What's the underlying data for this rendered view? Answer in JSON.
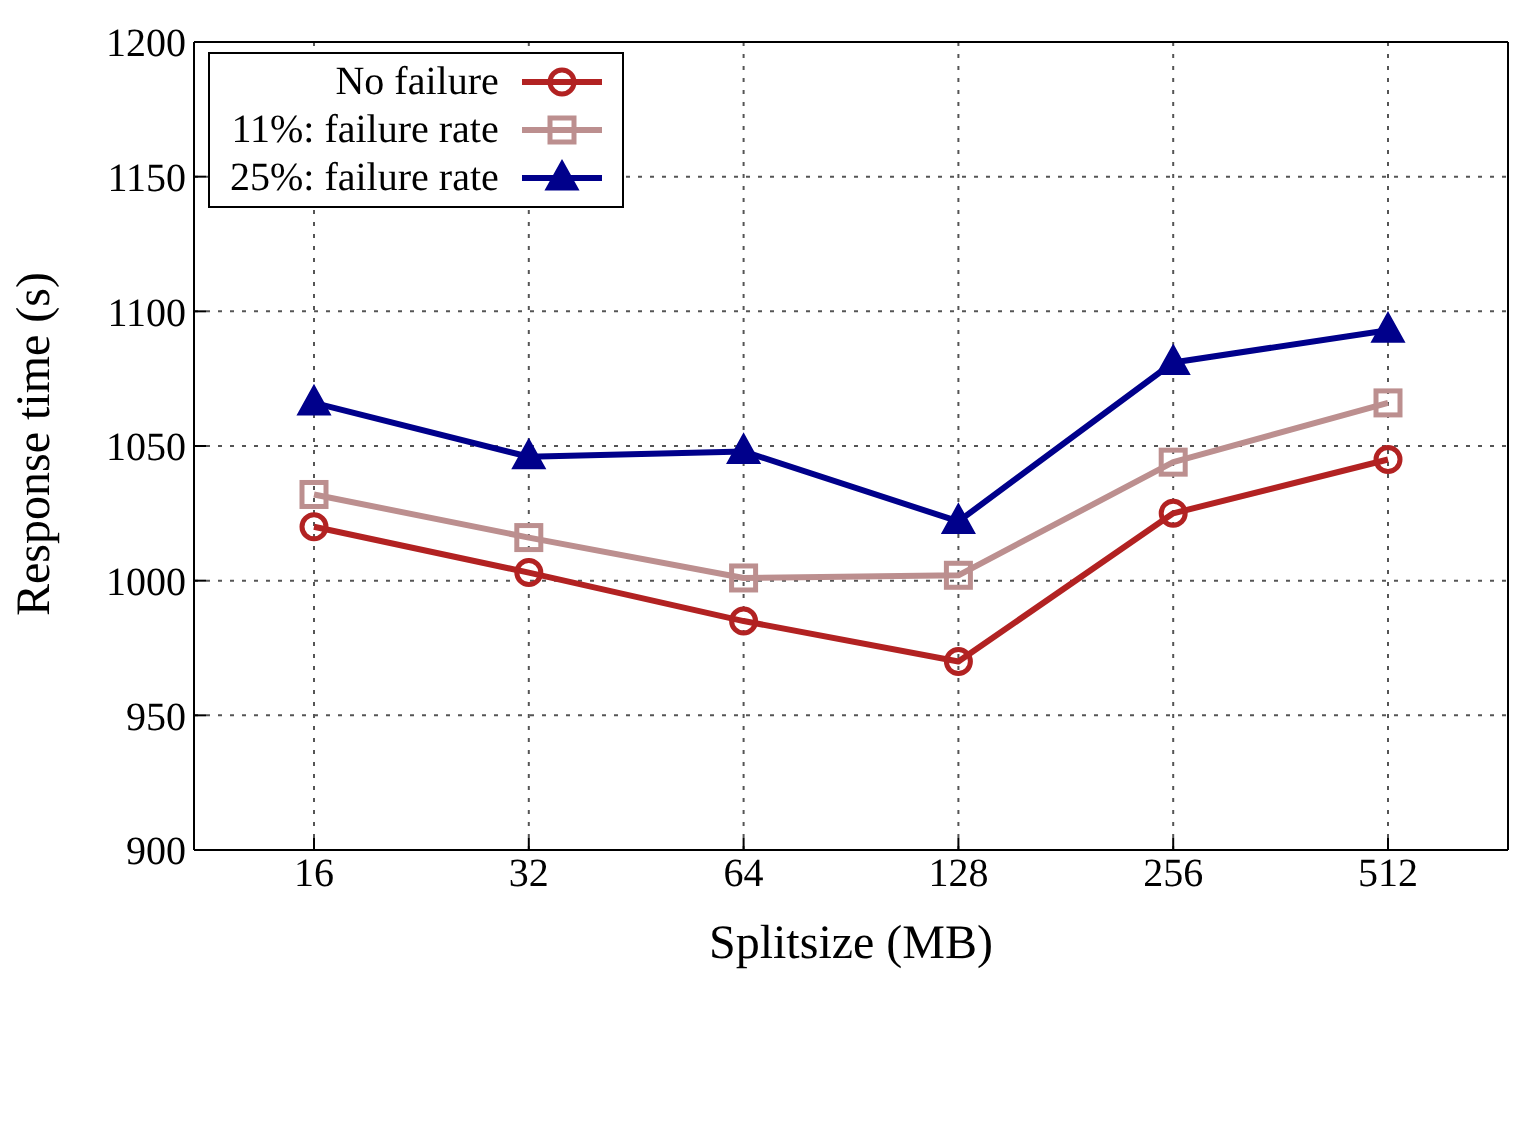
{
  "chart_data": {
    "type": "line",
    "xlabel": "Splitsize (MB)",
    "ylabel": "Response time (s)",
    "categories": [
      "16",
      "32",
      "64",
      "128",
      "256",
      "512"
    ],
    "ylim": [
      900,
      1200
    ],
    "yticks": [
      900,
      950,
      1000,
      1050,
      1100,
      1150,
      1200
    ],
    "grid": true,
    "legend": "top left",
    "line_style": "solid",
    "series": [
      {
        "name": "No failure",
        "color": "#b22222",
        "marker": "circle",
        "values": [
          1020,
          1003,
          985,
          970,
          1025,
          1045
        ]
      },
      {
        "name": "11%: failure rate",
        "color": "#bc8f8f",
        "marker": "square",
        "values": [
          1032,
          1016,
          1001,
          1002,
          1044,
          1066
        ]
      },
      {
        "name": "25%: failure rate",
        "color": "#00008b",
        "marker": "triangle",
        "values": [
          1066,
          1046,
          1048,
          1022,
          1081,
          1093
        ]
      }
    ]
  }
}
